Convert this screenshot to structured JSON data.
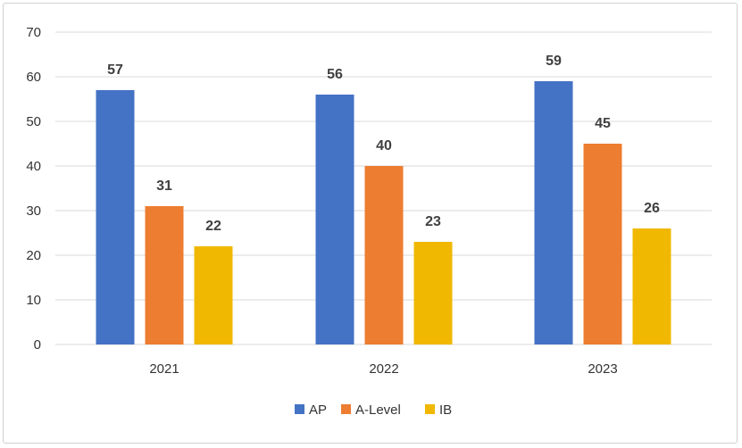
{
  "chart_data": {
    "type": "bar",
    "categories": [
      "2021",
      "2022",
      "2023"
    ],
    "series": [
      {
        "name": "AP",
        "values": [
          57,
          56,
          59
        ],
        "color": "#4472c4"
      },
      {
        "name": "A-Level",
        "values": [
          31,
          40,
          45
        ],
        "color": "#ed7d31"
      },
      {
        "name": "IB",
        "values": [
          22,
          23,
          26
        ],
        "color": "#f0b800"
      }
    ],
    "yticks": [
      0,
      10,
      20,
      30,
      40,
      50,
      60,
      70
    ],
    "ylim": [
      0,
      70
    ],
    "grid": true,
    "legend_position": "bottom",
    "data_labels": true,
    "gridline_color": "#d9d9d9"
  }
}
